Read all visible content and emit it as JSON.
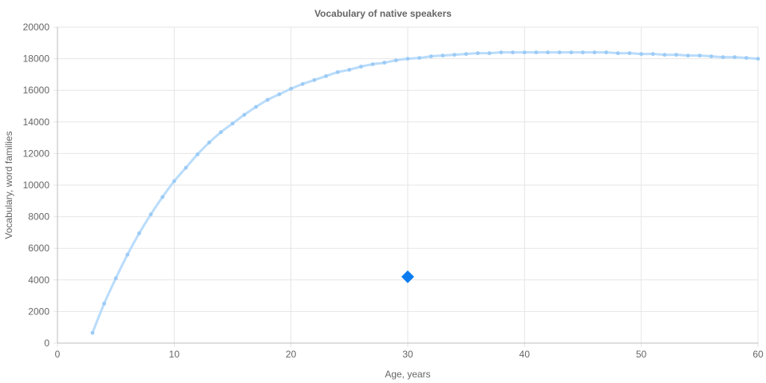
{
  "chart_data": {
    "type": "line",
    "title": "Vocabulary of native speakers",
    "xlabel": "Age, years",
    "ylabel": "Vocabulary, word families",
    "xlim": [
      0,
      60
    ],
    "ylim": [
      0,
      20000
    ],
    "x_ticks": [
      "0",
      "10",
      "20",
      "30",
      "40",
      "50",
      "60"
    ],
    "y_ticks": [
      "0",
      "2000",
      "4000",
      "6000",
      "8000",
      "10000",
      "12000",
      "14000",
      "16000",
      "18000",
      "20000"
    ],
    "grid": true,
    "series": [
      {
        "color": "#b9dcfb",
        "marker_color": "#9ccbf5",
        "points": [
          [
            3,
            650
          ],
          [
            4,
            2500
          ],
          [
            5,
            4100
          ],
          [
            6,
            5600
          ],
          [
            7,
            6950
          ],
          [
            8,
            8150
          ],
          [
            9,
            9250
          ],
          [
            10,
            10250
          ],
          [
            11,
            11100
          ],
          [
            12,
            11950
          ],
          [
            13,
            12700
          ],
          [
            14,
            13350
          ],
          [
            15,
            13900
          ],
          [
            16,
            14450
          ],
          [
            17,
            14950
          ],
          [
            18,
            15400
          ],
          [
            19,
            15750
          ],
          [
            20,
            16100
          ],
          [
            21,
            16400
          ],
          [
            22,
            16650
          ],
          [
            23,
            16900
          ],
          [
            24,
            17150
          ],
          [
            25,
            17300
          ],
          [
            26,
            17500
          ],
          [
            27,
            17650
          ],
          [
            28,
            17750
          ],
          [
            29,
            17900
          ],
          [
            30,
            18000
          ],
          [
            31,
            18050
          ],
          [
            32,
            18150
          ],
          [
            33,
            18200
          ],
          [
            34,
            18250
          ],
          [
            35,
            18300
          ],
          [
            36,
            18350
          ],
          [
            37,
            18350
          ],
          [
            38,
            18400
          ],
          [
            39,
            18400
          ],
          [
            40,
            18400
          ],
          [
            41,
            18400
          ],
          [
            42,
            18400
          ],
          [
            43,
            18400
          ],
          [
            44,
            18400
          ],
          [
            45,
            18400
          ],
          [
            46,
            18400
          ],
          [
            47,
            18400
          ],
          [
            48,
            18350
          ],
          [
            49,
            18350
          ],
          [
            50,
            18300
          ],
          [
            51,
            18300
          ],
          [
            52,
            18250
          ],
          [
            53,
            18250
          ],
          [
            54,
            18200
          ],
          [
            55,
            18200
          ],
          [
            56,
            18150
          ],
          [
            57,
            18100
          ],
          [
            58,
            18100
          ],
          [
            59,
            18050
          ],
          [
            60,
            18000
          ]
        ]
      },
      {
        "color": "#0a7cf0",
        "marker": "diamond",
        "points": [
          [
            30,
            4200
          ]
        ]
      }
    ]
  }
}
